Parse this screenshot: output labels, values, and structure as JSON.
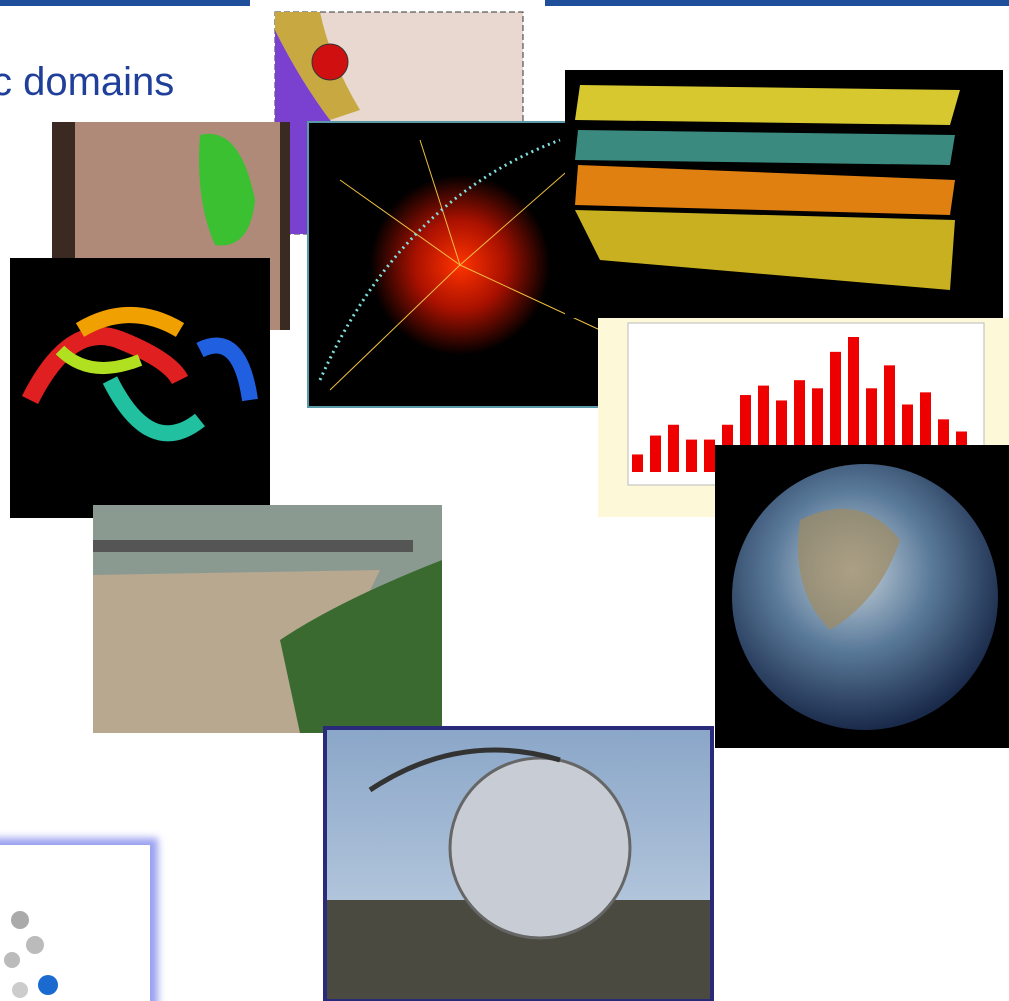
{
  "slide": {
    "title": "c domains"
  },
  "histogram_image": {
    "values": [
      0.13,
      0.27,
      0.35,
      0.24,
      0.24,
      0.35,
      0.57,
      0.64,
      0.53,
      0.68,
      0.62,
      0.89,
      1.0,
      0.62,
      0.79,
      0.5,
      0.59,
      0.39,
      0.3
    ],
    "ylim": [
      0,
      1
    ],
    "color": "#ee0000"
  }
}
